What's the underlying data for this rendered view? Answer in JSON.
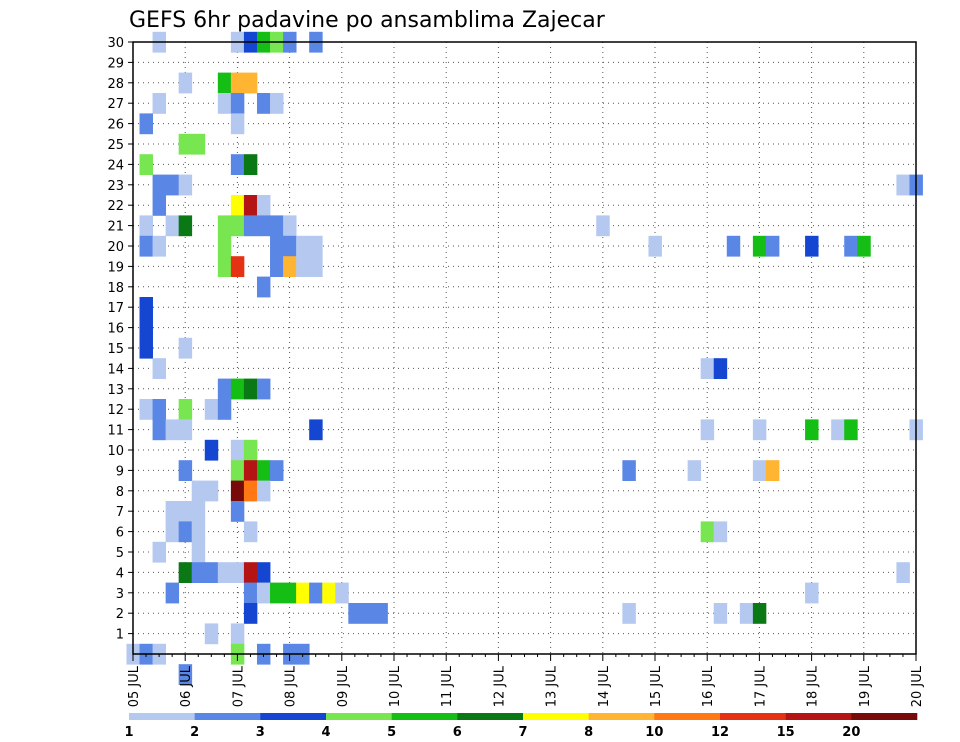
{
  "chart_data": {
    "type": "heatmap",
    "title": "GEFS 6hr padavine po ansamblima Zajecar",
    "xlabel": "",
    "ylabel": "",
    "x_range": [
      0,
      60
    ],
    "y_range": [
      0,
      30
    ],
    "x_ticks": [
      "05 JUL",
      "06 JUL",
      "07 JUL",
      "08 JUL",
      "09 JUL",
      "10 JUL",
      "11 JUL",
      "12 JUL",
      "13 JUL",
      "14 JUL",
      "15 JUL",
      "16 JUL",
      "17 JUL",
      "18 JUL",
      "19 JUL",
      "20 JUL"
    ],
    "y_ticks": [
      "1",
      "2",
      "3",
      "4",
      "5",
      "6",
      "7",
      "8",
      "9",
      "10",
      "11",
      "12",
      "13",
      "14",
      "15",
      "16",
      "17",
      "18",
      "19",
      "20",
      "21",
      "22",
      "23",
      "24",
      "25",
      "26",
      "27",
      "28",
      "29",
      "30"
    ],
    "grid": true,
    "colorbar": {
      "labels": [
        "1",
        "2",
        "3",
        "4",
        "5",
        "6",
        "7",
        "8",
        "10",
        "12",
        "15",
        "20"
      ],
      "colors": [
        "#b4c8f0",
        "#5a87e6",
        "#1446d2",
        "#78e650",
        "#14be14",
        "#0a7814",
        "#ffff00",
        "#ffb432",
        "#ff7814",
        "#e63214",
        "#b41414",
        "#780a0a"
      ]
    },
    "cells": [
      [
        30,
        2,
        1
      ],
      [
        30,
        8,
        1
      ],
      [
        30,
        9,
        3
      ],
      [
        30,
        10,
        5
      ],
      [
        30,
        11,
        4
      ],
      [
        30,
        12,
        2
      ],
      [
        30,
        14,
        2
      ],
      [
        28,
        4,
        1
      ],
      [
        28,
        7,
        5
      ],
      [
        28,
        8,
        8
      ],
      [
        28,
        9,
        8
      ],
      [
        27,
        2,
        1
      ],
      [
        27,
        7,
        1
      ],
      [
        27,
        8,
        2
      ],
      [
        27,
        10,
        2
      ],
      [
        27,
        11,
        1
      ],
      [
        26,
        1,
        2
      ],
      [
        26,
        8,
        1
      ],
      [
        25,
        4,
        4
      ],
      [
        25,
        5,
        4
      ],
      [
        24,
        1,
        4
      ],
      [
        24,
        8,
        2
      ],
      [
        24,
        9,
        6
      ],
      [
        23,
        2,
        2
      ],
      [
        23,
        3,
        2
      ],
      [
        23,
        4,
        1
      ],
      [
        23,
        59,
        1
      ],
      [
        23,
        60,
        2
      ],
      [
        22,
        2,
        2
      ],
      [
        22,
        8,
        7
      ],
      [
        22,
        9,
        11
      ],
      [
        22,
        10,
        1
      ],
      [
        21,
        1,
        1
      ],
      [
        21,
        3,
        1
      ],
      [
        21,
        4,
        6
      ],
      [
        21,
        7,
        4
      ],
      [
        21,
        8,
        4
      ],
      [
        21,
        9,
        2
      ],
      [
        21,
        10,
        2
      ],
      [
        21,
        11,
        2
      ],
      [
        21,
        12,
        1
      ],
      [
        21,
        36,
        1
      ],
      [
        20,
        1,
        2
      ],
      [
        20,
        2,
        1
      ],
      [
        20,
        7,
        4
      ],
      [
        20,
        11,
        2
      ],
      [
        20,
        12,
        2
      ],
      [
        20,
        13,
        1
      ],
      [
        20,
        14,
        1
      ],
      [
        20,
        40,
        1
      ],
      [
        20,
        46,
        2
      ],
      [
        20,
        48,
        5
      ],
      [
        20,
        49,
        2
      ],
      [
        20,
        52,
        3
      ],
      [
        20,
        55,
        2
      ],
      [
        20,
        56,
        5
      ],
      [
        19,
        7,
        4
      ],
      [
        19,
        8,
        10
      ],
      [
        19,
        11,
        2
      ],
      [
        19,
        12,
        8
      ],
      [
        19,
        13,
        1
      ],
      [
        19,
        14,
        1
      ],
      [
        18,
        10,
        2
      ],
      [
        17,
        1,
        3
      ],
      [
        16,
        1,
        3
      ],
      [
        15,
        1,
        3
      ],
      [
        15,
        4,
        1
      ],
      [
        14,
        2,
        1
      ],
      [
        14,
        44,
        1
      ],
      [
        14,
        45,
        3
      ],
      [
        13,
        7,
        2
      ],
      [
        13,
        8,
        5
      ],
      [
        13,
        9,
        6
      ],
      [
        13,
        10,
        2
      ],
      [
        12,
        1,
        1
      ],
      [
        12,
        2,
        2
      ],
      [
        12,
        4,
        4
      ],
      [
        12,
        6,
        1
      ],
      [
        12,
        7,
        2
      ],
      [
        11,
        2,
        2
      ],
      [
        11,
        3,
        1
      ],
      [
        11,
        4,
        1
      ],
      [
        11,
        14,
        3
      ],
      [
        11,
        44,
        1
      ],
      [
        11,
        48,
        1
      ],
      [
        11,
        52,
        5
      ],
      [
        11,
        54,
        1
      ],
      [
        11,
        55,
        5
      ],
      [
        11,
        60,
        1
      ],
      [
        10,
        6,
        3
      ],
      [
        10,
        8,
        1
      ],
      [
        10,
        9,
        4
      ],
      [
        9,
        4,
        2
      ],
      [
        9,
        8,
        4
      ],
      [
        9,
        9,
        11
      ],
      [
        9,
        10,
        5
      ],
      [
        9,
        11,
        2
      ],
      [
        9,
        38,
        2
      ],
      [
        9,
        43,
        1
      ],
      [
        9,
        48,
        1
      ],
      [
        9,
        49,
        8
      ],
      [
        8,
        5,
        1
      ],
      [
        8,
        6,
        1
      ],
      [
        8,
        8,
        12
      ],
      [
        8,
        9,
        9
      ],
      [
        8,
        10,
        1
      ],
      [
        7,
        3,
        1
      ],
      [
        7,
        4,
        1
      ],
      [
        7,
        5,
        1
      ],
      [
        7,
        8,
        2
      ],
      [
        6,
        3,
        1
      ],
      [
        6,
        4,
        2
      ],
      [
        6,
        5,
        1
      ],
      [
        6,
        9,
        1
      ],
      [
        6,
        44,
        4
      ],
      [
        6,
        45,
        1
      ],
      [
        5,
        2,
        1
      ],
      [
        5,
        5,
        1
      ],
      [
        4,
        4,
        6
      ],
      [
        4,
        5,
        2
      ],
      [
        4,
        6,
        2
      ],
      [
        4,
        7,
        1
      ],
      [
        4,
        8,
        1
      ],
      [
        4,
        9,
        11
      ],
      [
        4,
        10,
        3
      ],
      [
        4,
        59,
        1
      ],
      [
        3,
        3,
        2
      ],
      [
        3,
        9,
        2
      ],
      [
        3,
        10,
        1
      ],
      [
        3,
        11,
        5
      ],
      [
        3,
        12,
        5
      ],
      [
        3,
        13,
        7
      ],
      [
        3,
        14,
        2
      ],
      [
        3,
        15,
        7
      ],
      [
        3,
        16,
        1
      ],
      [
        3,
        52,
        1
      ],
      [
        2,
        9,
        3
      ],
      [
        2,
        17,
        2
      ],
      [
        2,
        18,
        2
      ],
      [
        2,
        19,
        2
      ],
      [
        2,
        38,
        1
      ],
      [
        2,
        45,
        1
      ],
      [
        2,
        47,
        1
      ],
      [
        2,
        48,
        6
      ],
      [
        1,
        6,
        1
      ],
      [
        1,
        8,
        1
      ],
      [
        0,
        0,
        1
      ],
      [
        0,
        1,
        2
      ],
      [
        0,
        2,
        1
      ],
      [
        0,
        8,
        4
      ],
      [
        0,
        10,
        2
      ],
      [
        0,
        12,
        2
      ],
      [
        0,
        13,
        2
      ],
      [
        -1,
        4,
        2
      ]
    ]
  }
}
